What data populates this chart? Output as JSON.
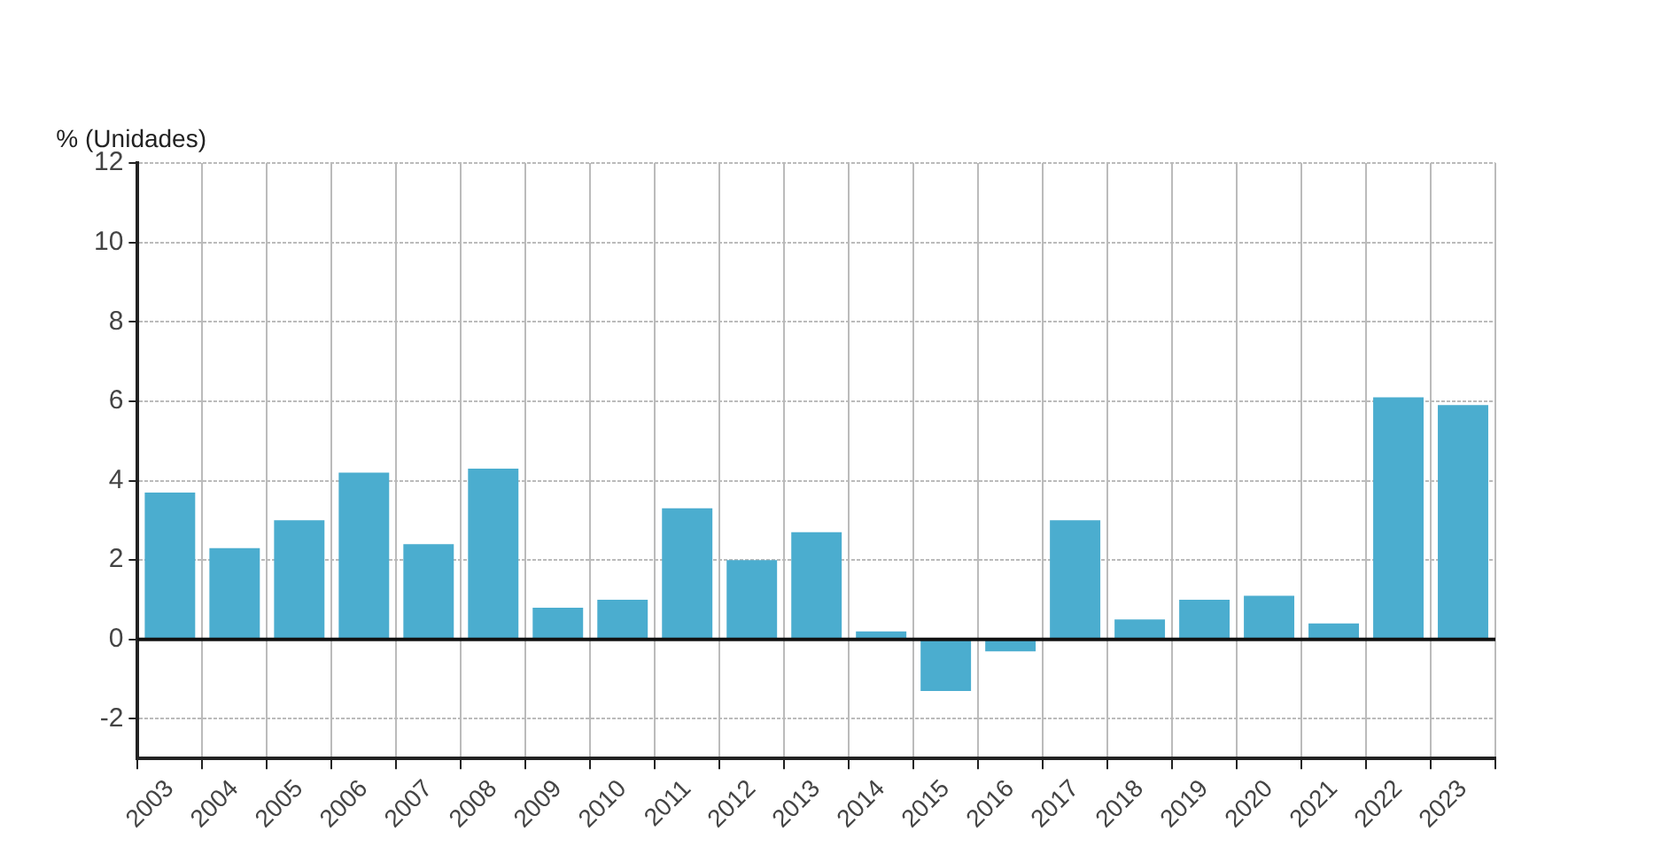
{
  "chart_data": {
    "type": "bar",
    "ylabel": "% (Unidades)",
    "categories": [
      "2003",
      "2004",
      "2005",
      "2006",
      "2007",
      "2008",
      "2009",
      "2010",
      "2011",
      "2012",
      "2013",
      "2014",
      "2015",
      "2016",
      "2017",
      "2018",
      "2019",
      "2020",
      "2021",
      "2022",
      "2023"
    ],
    "values": [
      3.7,
      2.3,
      3.0,
      4.2,
      2.4,
      4.3,
      0.8,
      1.0,
      3.3,
      2.0,
      2.7,
      0.2,
      -1.3,
      -0.3,
      3.0,
      0.5,
      1.0,
      1.1,
      0.4,
      6.1,
      5.9
    ],
    "color": "#4badcf",
    "ylim": [
      -3,
      12
    ],
    "yticks": [
      -2,
      0,
      2,
      4,
      6,
      8,
      10,
      12
    ],
    "grid": true,
    "legend": false,
    "ref_lines": [
      {
        "axis": "y",
        "value": 0,
        "color": "#111111"
      }
    ]
  }
}
